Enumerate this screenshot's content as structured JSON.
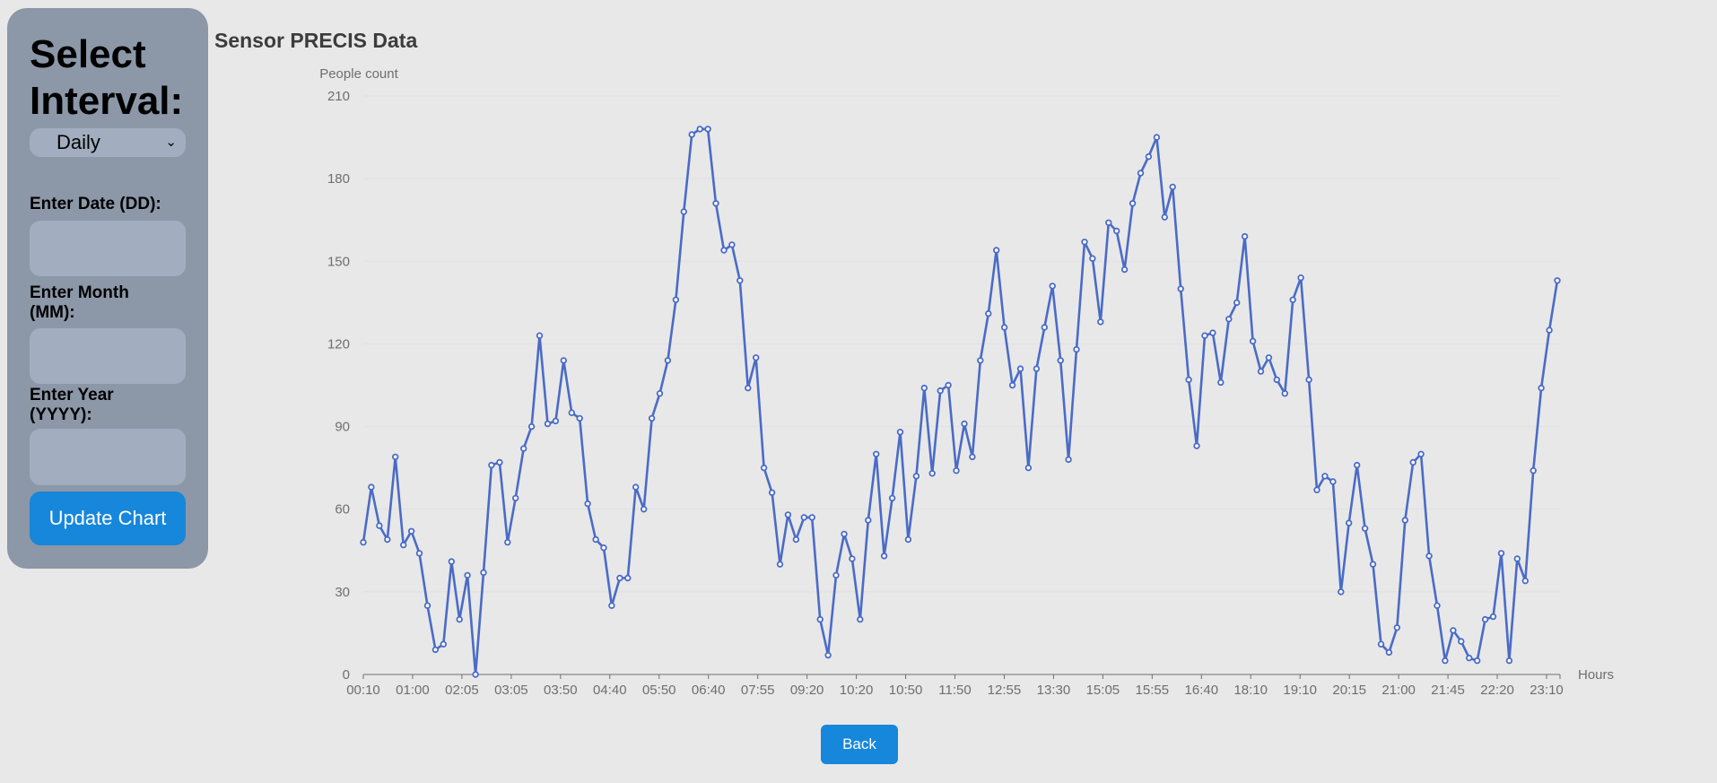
{
  "sidebar": {
    "title_line1": "Select",
    "title_line2": "Interval:",
    "interval_selected": "Daily",
    "date_label": "Enter Date (DD):",
    "month_label_line1": "Enter Month",
    "month_label_line2": "(MM):",
    "year_label_line1": "Enter Year",
    "year_label_line2": "(YYYY):",
    "date_value": "",
    "month_value": "",
    "year_value": "",
    "update_label": "Update Chart"
  },
  "back_label": "Back",
  "colors": {
    "line": "#4a6bc7",
    "button": "#1687db",
    "sidebar": "#8c97a8"
  },
  "chart_data": {
    "type": "line",
    "title": "Sensor PRECIS Data",
    "xlabel": "Hours",
    "ylabel": "People count",
    "ylim": [
      0,
      210
    ],
    "yticks": [
      0,
      30,
      60,
      90,
      120,
      150,
      180,
      210
    ],
    "grid": true,
    "xtick_labels": [
      "00:10",
      "01:00",
      "02:05",
      "03:05",
      "03:50",
      "04:40",
      "05:50",
      "06:40",
      "07:55",
      "09:20",
      "10:20",
      "10:50",
      "11:50",
      "12:55",
      "13:30",
      "15:05",
      "15:55",
      "16:40",
      "18:10",
      "19:10",
      "20:15",
      "21:00",
      "21:45",
      "22:20",
      "23:10"
    ],
    "series": [
      {
        "values": [
          48,
          68,
          54,
          49,
          79,
          47,
          52,
          44,
          25,
          9,
          11,
          41,
          20,
          36,
          0,
          37,
          76,
          77,
          48,
          64,
          82,
          90,
          123,
          91,
          92,
          114,
          95,
          93,
          62,
          49,
          46,
          25,
          35,
          35,
          68,
          60,
          93,
          102,
          114,
          136,
          168,
          196,
          198,
          198,
          171,
          154,
          156,
          143,
          104,
          115,
          75,
          66,
          40,
          58,
          49,
          57,
          57,
          20,
          7,
          36,
          51,
          42,
          20,
          56,
          80,
          43,
          64,
          88,
          49,
          72,
          104,
          73,
          103,
          105,
          74,
          91,
          79,
          114,
          131,
          154,
          126,
          105,
          111,
          75,
          111,
          126,
          141,
          114,
          78,
          118,
          157,
          151,
          128,
          164,
          161,
          147,
          171,
          182,
          188,
          195,
          166,
          177,
          140,
          107,
          83,
          123,
          124,
          106,
          129,
          135,
          159,
          121,
          110,
          115,
          107,
          102,
          136,
          144,
          107,
          67,
          72,
          70,
          30,
          55,
          76,
          53,
          40,
          11,
          8,
          17,
          56,
          77,
          80,
          43,
          25,
          5,
          16,
          12,
          6,
          5,
          20,
          21,
          44,
          5,
          42,
          34,
          74,
          104,
          125,
          143
        ]
      }
    ]
  }
}
